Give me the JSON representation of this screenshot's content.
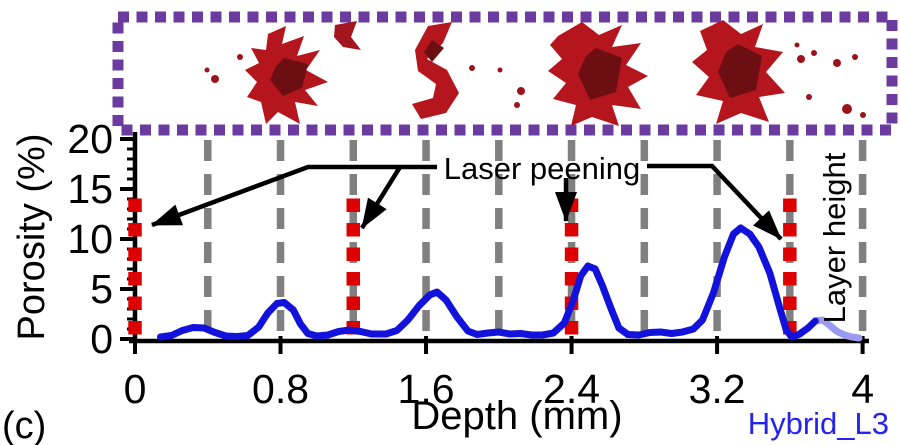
{
  "figure_label": "(c)",
  "sample_label": "Hybrid_L3",
  "annotations": {
    "laser_peening_label": "Laser peening",
    "layer_height_label": "Layer height"
  },
  "colors": {
    "curve_blue": "#1212dc",
    "curve_faded_blue": "#9a9af0",
    "laser_marker_red": "#dd0000",
    "layer_line_gray": "#808080",
    "box_border_purple": "#6b3ba0",
    "sample_label_blue": "#2424ee",
    "axis_black": "#000000",
    "blob_red": "#b5161e",
    "blob_dark_red": "#6d0e13"
  },
  "chart_data": {
    "type": "line",
    "title": "",
    "xlabel": "Depth (mm)",
    "ylabel": "Porosity (%)",
    "xlim": [
      0,
      4
    ],
    "ylim": [
      0,
      20
    ],
    "x_ticks": [
      0,
      0.8,
      1.6,
      2.4,
      3.2,
      4
    ],
    "y_ticks": [
      0,
      5,
      10,
      15,
      20
    ],
    "grid": false,
    "legend": "none",
    "layer_height_mm": 0.4,
    "layer_boundary_depths_mm": [
      0.4,
      0.8,
      1.2,
      1.6,
      2.0,
      2.4,
      2.8,
      3.2,
      3.6,
      4.0
    ],
    "laser_peening_depths_mm": [
      0,
      1.2,
      2.4,
      3.6
    ],
    "series": [
      {
        "name": "porosity_vs_depth",
        "color": "#1212dc",
        "points": [
          [
            0.14,
            0.2
          ],
          [
            0.2,
            0.35
          ],
          [
            0.26,
            0.85
          ],
          [
            0.32,
            1.15
          ],
          [
            0.38,
            1.1
          ],
          [
            0.44,
            0.65
          ],
          [
            0.5,
            0.3
          ],
          [
            0.56,
            0.25
          ],
          [
            0.62,
            0.35
          ],
          [
            0.68,
            1.2
          ],
          [
            0.73,
            2.6
          ],
          [
            0.78,
            3.55
          ],
          [
            0.82,
            3.65
          ],
          [
            0.87,
            2.9
          ],
          [
            0.91,
            1.5
          ],
          [
            0.95,
            0.55
          ],
          [
            1.0,
            0.3
          ],
          [
            1.06,
            0.4
          ],
          [
            1.12,
            0.75
          ],
          [
            1.18,
            0.9
          ],
          [
            1.24,
            0.75
          ],
          [
            1.3,
            0.5
          ],
          [
            1.38,
            0.5
          ],
          [
            1.44,
            0.85
          ],
          [
            1.5,
            1.9
          ],
          [
            1.56,
            3.3
          ],
          [
            1.62,
            4.4
          ],
          [
            1.66,
            4.7
          ],
          [
            1.71,
            3.9
          ],
          [
            1.77,
            2.2
          ],
          [
            1.83,
            0.8
          ],
          [
            1.88,
            0.45
          ],
          [
            1.94,
            0.6
          ],
          [
            2.0,
            0.7
          ],
          [
            2.06,
            0.5
          ],
          [
            2.12,
            0.55
          ],
          [
            2.18,
            0.4
          ],
          [
            2.24,
            0.4
          ],
          [
            2.3,
            0.6
          ],
          [
            2.36,
            1.6
          ],
          [
            2.41,
            3.9
          ],
          [
            2.45,
            6.3
          ],
          [
            2.49,
            7.3
          ],
          [
            2.53,
            7.0
          ],
          [
            2.57,
            5.3
          ],
          [
            2.62,
            2.9
          ],
          [
            2.66,
            1.1
          ],
          [
            2.71,
            0.45
          ],
          [
            2.77,
            0.4
          ],
          [
            2.83,
            0.65
          ],
          [
            2.89,
            0.7
          ],
          [
            2.95,
            0.55
          ],
          [
            3.01,
            0.7
          ],
          [
            3.07,
            1.0
          ],
          [
            3.12,
            1.9
          ],
          [
            3.18,
            4.6
          ],
          [
            3.24,
            8.2
          ],
          [
            3.29,
            10.5
          ],
          [
            3.33,
            11.1
          ],
          [
            3.38,
            10.5
          ],
          [
            3.43,
            9.2
          ],
          [
            3.49,
            6.6
          ],
          [
            3.54,
            3.4
          ],
          [
            3.58,
            0.9
          ],
          [
            3.61,
            0.2
          ],
          [
            3.65,
            0.45
          ],
          [
            3.7,
            1.1
          ],
          [
            3.74,
            1.8
          ]
        ]
      },
      {
        "name": "porosity_vs_depth_faded_tail",
        "color": "#9a9af0",
        "points": [
          [
            3.74,
            1.8
          ],
          [
            3.78,
            1.9
          ],
          [
            3.82,
            1.35
          ],
          [
            3.86,
            0.75
          ],
          [
            3.9,
            0.4
          ],
          [
            3.94,
            0.2
          ],
          [
            3.98,
            0.1
          ]
        ]
      }
    ]
  }
}
